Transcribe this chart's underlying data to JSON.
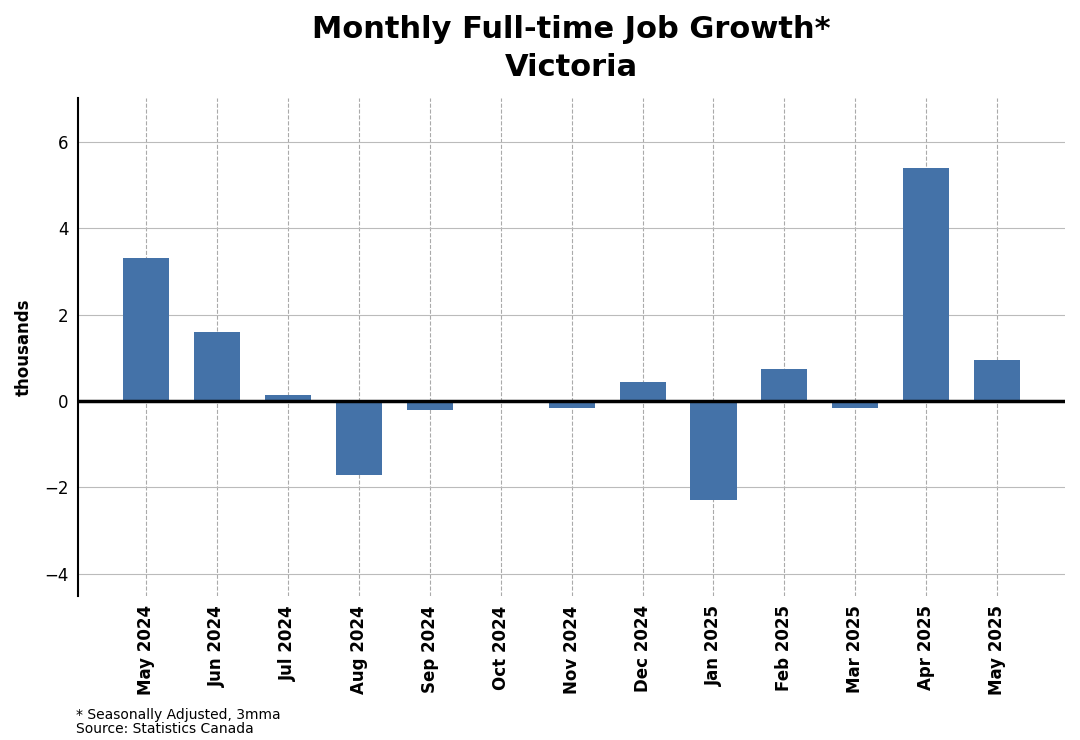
{
  "title_line1": "Monthly Full-time Job Growth*",
  "title_line2": "Victoria",
  "categories": [
    "May 2024",
    "Jun 2024",
    "Jul 2024",
    "Aug 2024",
    "Sep 2024",
    "Oct 2024",
    "Nov 2024",
    "Dec 2024",
    "Jan 2025",
    "Feb 2025",
    "Mar 2025",
    "Apr 2025",
    "May 2025"
  ],
  "values": [
    3.3,
    1.6,
    0.15,
    -1.7,
    -0.2,
    -0.05,
    -0.15,
    0.45,
    -2.3,
    0.75,
    -0.15,
    5.4,
    0.95
  ],
  "bar_color": "#4472a8",
  "ylabel": "thousands",
  "ylim": [
    -4.5,
    7.0
  ],
  "yticks": [
    -4,
    -2,
    0,
    2,
    4,
    6
  ],
  "footnote_line1": "* Seasonally Adjusted, 3mma",
  "footnote_line2": "Source: Statistics Canada",
  "background_color": "#ffffff",
  "hgrid_color": "#bbbbbb",
  "vgrid_color": "#aaaaaa",
  "title_fontsize": 22,
  "axis_label_fontsize": 12,
  "tick_fontsize": 12,
  "footnote_fontsize": 10
}
